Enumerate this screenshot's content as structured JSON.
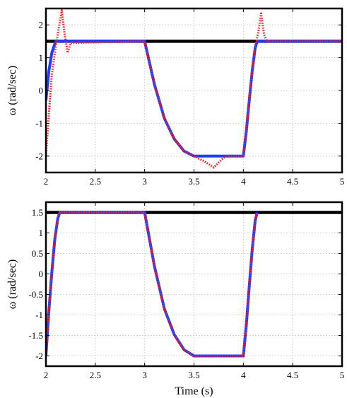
{
  "colors": {
    "reference": "#000000",
    "actual": "#1f3bff",
    "estimate": "#ff1a1a",
    "grid": "#c8c8c8",
    "frame": "#000000"
  },
  "chart_data": [
    {
      "type": "line",
      "ylabel": "ω (rad/sec)",
      "xlabel": "",
      "xlim": [
        2,
        5
      ],
      "ylim": [
        -2.5,
        2.5
      ],
      "xticks": [
        2,
        2.5,
        3,
        3.5,
        4,
        4.5,
        5
      ],
      "xtick_labels": [
        "2",
        "2.5",
        "3",
        "3.5",
        "4",
        "4.5",
        "5"
      ],
      "yticks": [
        -2,
        -1,
        0,
        1,
        2
      ],
      "ytick_labels": [
        "-2",
        "-1",
        "0",
        "1",
        "2"
      ],
      "grid": true,
      "series": [
        {
          "style": "solid-black-thick",
          "x": [
            2,
            5
          ],
          "y": [
            1.5,
            1.5
          ]
        },
        {
          "style": "solid-blue",
          "x": [
            2.0,
            2.03,
            2.06,
            2.09,
            2.1,
            2.12,
            2.15,
            3.0,
            3.1,
            3.2,
            3.3,
            3.4,
            3.5,
            3.6,
            3.7,
            3.8,
            3.9,
            4.0,
            4.03,
            4.06,
            4.09,
            4.12,
            4.14,
            5.0
          ],
          "y": [
            -0.3,
            0.6,
            1.15,
            1.42,
            1.5,
            1.5,
            1.5,
            1.5,
            0.18,
            -0.85,
            -1.48,
            -1.85,
            -2.0,
            -2.0,
            -2.0,
            -2.0,
            -2.0,
            -2.0,
            -1.25,
            -0.3,
            0.6,
            1.3,
            1.5,
            1.5
          ]
        },
        {
          "style": "dotted-red",
          "x": [
            2.0,
            2.03,
            2.06,
            2.1,
            2.13,
            2.16,
            2.19,
            2.22,
            2.25,
            3.0,
            3.1,
            3.2,
            3.3,
            3.4,
            3.5,
            3.55,
            3.6,
            3.65,
            3.7,
            3.75,
            3.8,
            3.85,
            3.9,
            4.0,
            4.03,
            4.06,
            4.09,
            4.12,
            4.15,
            4.18,
            4.21,
            4.24,
            5.0
          ],
          "y": [
            -2.0,
            -0.7,
            0.5,
            1.35,
            1.9,
            2.45,
            1.7,
            1.15,
            1.45,
            1.5,
            0.18,
            -0.85,
            -1.48,
            -1.85,
            -2.0,
            -2.08,
            -2.15,
            -2.25,
            -2.35,
            -2.2,
            -2.05,
            -2.0,
            -2.0,
            -2.0,
            -1.25,
            -0.3,
            0.6,
            1.35,
            1.75,
            2.35,
            1.7,
            1.5,
            1.5
          ]
        }
      ]
    },
    {
      "type": "line",
      "ylabel": "ω (rad/sec)",
      "xlabel": "Time (s)",
      "xlim": [
        2,
        5
      ],
      "ylim": [
        -2.25,
        1.75
      ],
      "xticks": [
        2,
        2.5,
        3,
        3.5,
        4,
        4.5,
        5
      ],
      "xtick_labels": [
        "2",
        "2.5",
        "3",
        "3.5",
        "4",
        "4.5",
        "5"
      ],
      "yticks": [
        -2,
        -1.5,
        -1,
        -0.5,
        0,
        0.5,
        1,
        1.5
      ],
      "ytick_labels": [
        "-2",
        "-1.5",
        "-1",
        "-0.5",
        "0",
        "0.5",
        "1",
        "1.5"
      ],
      "grid": true,
      "series": [
        {
          "style": "solid-black-thick",
          "x": [
            2,
            5
          ],
          "y": [
            1.5,
            1.5
          ]
        },
        {
          "style": "solid-blue",
          "x": [
            2.0,
            2.03,
            2.06,
            2.09,
            2.12,
            2.14,
            3.0,
            3.1,
            3.2,
            3.3,
            3.4,
            3.5,
            3.6,
            3.7,
            3.8,
            3.9,
            4.0,
            4.03,
            4.06,
            4.09,
            4.12,
            4.14
          ],
          "y": [
            -2.0,
            -0.9,
            0.05,
            0.85,
            1.35,
            1.5,
            1.5,
            0.18,
            -0.85,
            -1.48,
            -1.85,
            -2.0,
            -2.0,
            -2.0,
            -2.0,
            -2.0,
            -2.0,
            -1.25,
            -0.3,
            0.6,
            1.3,
            1.5
          ]
        },
        {
          "style": "dotted-red",
          "x": [
            2.0,
            2.03,
            2.06,
            2.09,
            2.12,
            2.14,
            3.0,
            3.1,
            3.2,
            3.3,
            3.4,
            3.5,
            3.6,
            3.7,
            3.8,
            3.9,
            4.0,
            4.03,
            4.06,
            4.09,
            4.12,
            4.14
          ],
          "y": [
            -2.0,
            -0.9,
            0.05,
            0.85,
            1.35,
            1.5,
            1.5,
            0.18,
            -0.85,
            -1.48,
            -1.85,
            -2.0,
            -2.0,
            -2.0,
            -2.0,
            -2.0,
            -2.0,
            -1.25,
            -0.3,
            0.6,
            1.3,
            1.5
          ]
        }
      ]
    }
  ]
}
